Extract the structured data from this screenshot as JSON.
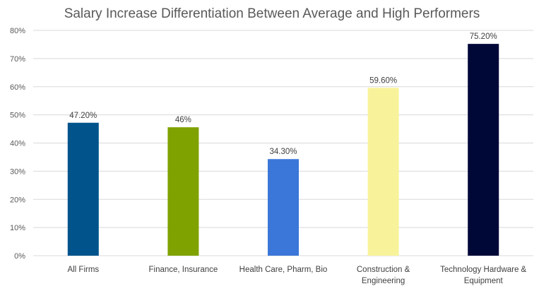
{
  "chart_data": {
    "type": "bar",
    "title": "Salary Increase Differentiation Between Average and High Performers",
    "xlabel": "",
    "ylabel": "",
    "ylim": [
      0,
      80
    ],
    "yticks": [
      "0%",
      "10%",
      "20%",
      "30%",
      "40%",
      "50%",
      "60%",
      "70%",
      "80%"
    ],
    "grid": true,
    "legend": "none",
    "categories": [
      [
        "All Firms"
      ],
      [
        "Finance, Insurance"
      ],
      [
        "Health Care, Pharm, Bio"
      ],
      [
        "Construction &",
        "Engineering"
      ],
      [
        "Technology Hardware &",
        "Equipment"
      ]
    ],
    "values": [
      47.2,
      45.6,
      34.3,
      59.6,
      75.2
    ],
    "data_labels": [
      "47.20%",
      "46%",
      "34.30%",
      "59.60%",
      "75.20%"
    ],
    "colors": [
      "#00548b",
      "#7fa200",
      "#3b77d8",
      "#f8f39a",
      "#000838"
    ]
  }
}
